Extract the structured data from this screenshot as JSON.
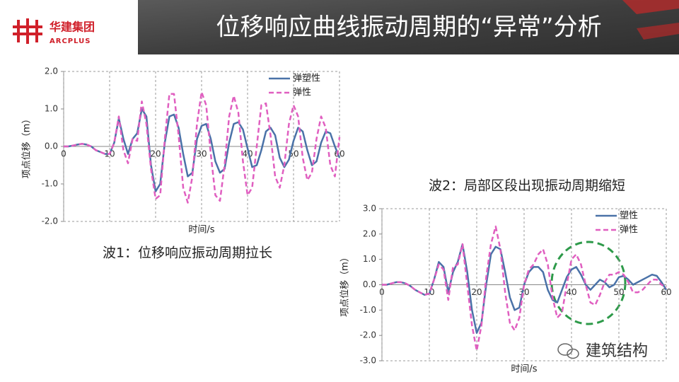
{
  "header": {
    "logo_cn": "华建集团",
    "logo_en": "ARCPLUS",
    "title": "位移响应曲线振动周期的“异常”分析"
  },
  "captions": [
    "波1：位移响应振动周期拉长",
    "波2：局部区段出现振动周期缩短"
  ],
  "watermark": "建筑结构",
  "chart_data": [
    {
      "type": "line",
      "x_label": "时间/s",
      "y_label": "项点位移（m）",
      "x": [
        0,
        1,
        2,
        3,
        4,
        5,
        6,
        7,
        8,
        9,
        10,
        11,
        12,
        13,
        14,
        15,
        16,
        17,
        18,
        19,
        20,
        21,
        22,
        23,
        24,
        25,
        26,
        27,
        28,
        29,
        30,
        31,
        32,
        33,
        34,
        35,
        36,
        37,
        38,
        39,
        40,
        41,
        42,
        43,
        44,
        45,
        46,
        47,
        48,
        49,
        50,
        51,
        52,
        53,
        54,
        55,
        56,
        57,
        58,
        59,
        60
      ],
      "series": [
        {
          "name": "弹塑性",
          "color": "#4a72a8",
          "dash": false,
          "values": [
            0,
            0,
            0.02,
            0.05,
            0.07,
            0.05,
            0,
            -0.1,
            -0.15,
            -0.2,
            -0.2,
            0.1,
            0.75,
            0.2,
            -0.2,
            0.2,
            0.35,
            1.0,
            0.8,
            -0.5,
            -1.2,
            -1.0,
            0.1,
            0.8,
            0.85,
            0.5,
            -0.2,
            -0.8,
            -0.7,
            0.2,
            0.55,
            0.6,
            0.2,
            -0.4,
            -0.7,
            -0.6,
            0.1,
            0.6,
            0.65,
            0.45,
            -0.05,
            -0.55,
            -0.5,
            -0.1,
            0.4,
            0.5,
            0.3,
            -0.3,
            -0.55,
            -0.35,
            0.15,
            0.5,
            0.4,
            -0.1,
            -0.5,
            -0.4,
            0.1,
            0.4,
            0.35,
            0,
            -0.3
          ]
        },
        {
          "name": "弹性",
          "color": "#e05fc0",
          "dash": true,
          "values": [
            0,
            0,
            0.02,
            0.05,
            0.07,
            0.05,
            0,
            -0.1,
            -0.15,
            -0.2,
            -0.2,
            0.1,
            0.8,
            -0.1,
            -0.45,
            0.2,
            0.15,
            1.2,
            0.6,
            -0.6,
            -1.4,
            -1.3,
            0.2,
            1.4,
            1.4,
            0.3,
            -1.1,
            -1.5,
            -0.8,
            0.6,
            1.45,
            1.1,
            -0.2,
            -1.3,
            -1.45,
            -0.5,
            0.8,
            1.35,
            0.9,
            -0.4,
            -1.3,
            -1.1,
            0,
            1.1,
            1.15,
            0.3,
            -0.8,
            -1.1,
            -0.5,
            0.6,
            1.1,
            0.8,
            -0.3,
            -0.9,
            -0.7,
            0.2,
            0.8,
            0.5,
            -0.5,
            -0.8,
            0.25
          ]
        }
      ],
      "xlim": [
        0,
        60
      ],
      "xticks": [
        0,
        10,
        20,
        30,
        40,
        50,
        60
      ],
      "ylim": [
        -2,
        2
      ],
      "yticks": [
        {
          "value": -2,
          "label": "-2.0"
        },
        {
          "value": -1,
          "label": "-1.0"
        },
        {
          "value": 0,
          "label": "0.0"
        },
        {
          "value": 1,
          "label": "1.0"
        },
        {
          "value": 2,
          "label": "2.0"
        }
      ],
      "grid": true,
      "legend": "upper right"
    },
    {
      "type": "line",
      "x_label": "时间/s",
      "y_label": "项点位移（m）",
      "x": [
        0,
        1,
        2,
        3,
        4,
        5,
        6,
        7,
        8,
        9,
        10,
        11,
        12,
        13,
        14,
        15,
        16,
        17,
        18,
        19,
        20,
        21,
        22,
        23,
        24,
        25,
        26,
        27,
        28,
        29,
        30,
        31,
        32,
        33,
        34,
        35,
        36,
        37,
        38,
        39,
        40,
        41,
        42,
        43,
        44,
        45,
        46,
        47,
        48,
        49,
        50,
        51,
        52,
        53,
        54,
        55,
        56,
        57,
        58,
        59,
        60
      ],
      "series": [
        {
          "name": "塑性",
          "color": "#4a72a8",
          "dash": false,
          "values": [
            0,
            0,
            0.05,
            0.1,
            0.1,
            0.05,
            -0.05,
            -0.2,
            -0.3,
            -0.4,
            -0.35,
            0.2,
            0.9,
            0.7,
            -0.3,
            0.5,
            0.9,
            1.6,
            0.5,
            -1,
            -1.9,
            -1.5,
            0,
            1.2,
            1.5,
            1.4,
            0.5,
            -0.5,
            -1.0,
            -0.9,
            0,
            0.5,
            0.7,
            0.7,
            0.5,
            -0.2,
            -0.6,
            -0.7,
            -0.2,
            0.3,
            0.6,
            0.7,
            0.4,
            0,
            -0.2,
            0,
            0.2,
            0.1,
            -0.1,
            0,
            0.3,
            0.35,
            0.2,
            0,
            0.1,
            0.2,
            0.3,
            0.4,
            0.35,
            0.1,
            -0.2
          ]
        },
        {
          "name": "弹性",
          "color": "#e05fc0",
          "dash": true,
          "values": [
            0,
            0,
            0.05,
            0.1,
            0.1,
            0.05,
            -0.05,
            -0.2,
            -0.3,
            -0.4,
            -0.35,
            0.2,
            0.8,
            0.6,
            -0.6,
            0.7,
            0.8,
            1.6,
            0,
            -1.6,
            -2.6,
            -1.6,
            0.3,
            1.6,
            2.3,
            1.4,
            -0.3,
            -1.5,
            -1.8,
            -1.3,
            0,
            0.6,
            0.8,
            1.2,
            1.4,
            0.8,
            -0.5,
            -1.3,
            -1.1,
            0,
            1.0,
            1.2,
            0.8,
            0,
            -0.7,
            -0.8,
            -0.4,
            0.1,
            0.4,
            0.4,
            0.5,
            0.4,
            0.1,
            -0.3,
            -0.3,
            -0.2,
            0,
            0.2,
            0.2,
            0,
            -0.1
          ]
        }
      ],
      "xlim": [
        0,
        60
      ],
      "xticks": [
        0,
        10,
        20,
        30,
        40,
        50,
        60
      ],
      "ylim": [
        -3,
        3
      ],
      "yticks": [
        {
          "value": -3,
          "label": "-3.0"
        },
        {
          "value": -2,
          "label": "-2.0"
        },
        {
          "value": -1,
          "label": "-1.0"
        },
        {
          "value": 0,
          "label": "0.0"
        },
        {
          "value": 1,
          "label": "1.0"
        },
        {
          "value": 2,
          "label": "2.0"
        },
        {
          "value": 3,
          "label": "3.0"
        }
      ],
      "grid": true,
      "legend": "upper right"
    }
  ]
}
